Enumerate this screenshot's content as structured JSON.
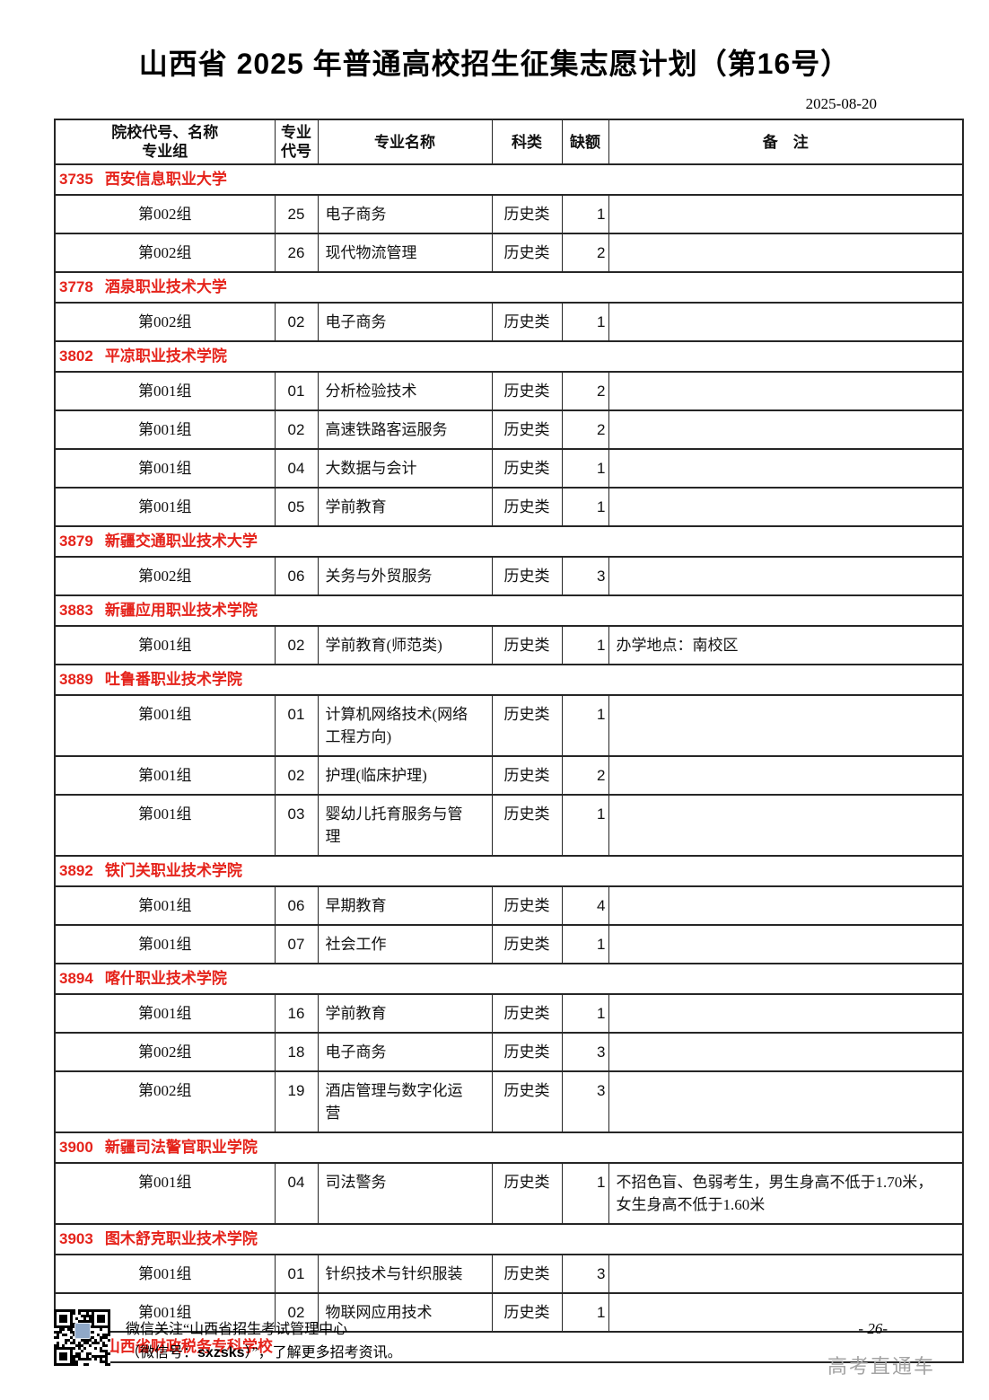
{
  "page": {
    "title": "山西省 2025 年普通高校招生征集志愿计划（第16号）",
    "date": "2025-08-20"
  },
  "table": {
    "headers": {
      "col1_line1": "院校代号、名称",
      "col1_line2": "专业组",
      "col2_line1": "专业",
      "col2_line2": "代号",
      "col3": "专业名称",
      "col4": "科类",
      "col5": "缺额",
      "col6": "备　注"
    },
    "sections": [
      {
        "code": "3735",
        "name": "西安信息职业大学",
        "rows": [
          {
            "group": "第002组",
            "major_code": "25",
            "major_name": "电子商务",
            "category": "历史类",
            "vacancy": "1",
            "remark": ""
          },
          {
            "group": "第002组",
            "major_code": "26",
            "major_name": "现代物流管理",
            "category": "历史类",
            "vacancy": "2",
            "remark": ""
          }
        ]
      },
      {
        "code": "3778",
        "name": "酒泉职业技术大学",
        "rows": [
          {
            "group": "第002组",
            "major_code": "02",
            "major_name": "电子商务",
            "category": "历史类",
            "vacancy": "1",
            "remark": ""
          }
        ]
      },
      {
        "code": "3802",
        "name": "平凉职业技术学院",
        "rows": [
          {
            "group": "第001组",
            "major_code": "01",
            "major_name": "分析检验技术",
            "category": "历史类",
            "vacancy": "2",
            "remark": ""
          },
          {
            "group": "第001组",
            "major_code": "02",
            "major_name": "高速铁路客运服务",
            "category": "历史类",
            "vacancy": "2",
            "remark": ""
          },
          {
            "group": "第001组",
            "major_code": "04",
            "major_name": "大数据与会计",
            "category": "历史类",
            "vacancy": "1",
            "remark": ""
          },
          {
            "group": "第001组",
            "major_code": "05",
            "major_name": "学前教育",
            "category": "历史类",
            "vacancy": "1",
            "remark": ""
          }
        ]
      },
      {
        "code": "3879",
        "name": "新疆交通职业技术大学",
        "rows": [
          {
            "group": "第002组",
            "major_code": "06",
            "major_name": "关务与外贸服务",
            "category": "历史类",
            "vacancy": "3",
            "remark": ""
          }
        ]
      },
      {
        "code": "3883",
        "name": "新疆应用职业技术学院",
        "rows": [
          {
            "group": "第001组",
            "major_code": "02",
            "major_name": "学前教育(师范类)",
            "category": "历史类",
            "vacancy": "1",
            "remark": "办学地点：南校区"
          }
        ]
      },
      {
        "code": "3889",
        "name": "吐鲁番职业技术学院",
        "rows": [
          {
            "group": "第001组",
            "major_code": "01",
            "major_name": "计算机网络技术(网络工程方向)",
            "category": "历史类",
            "vacancy": "1",
            "remark": ""
          },
          {
            "group": "第001组",
            "major_code": "02",
            "major_name": "护理(临床护理)",
            "category": "历史类",
            "vacancy": "2",
            "remark": ""
          },
          {
            "group": "第001组",
            "major_code": "03",
            "major_name": "婴幼儿托育服务与管理",
            "category": "历史类",
            "vacancy": "1",
            "remark": ""
          }
        ]
      },
      {
        "code": "3892",
        "name": "铁门关职业技术学院",
        "rows": [
          {
            "group": "第001组",
            "major_code": "06",
            "major_name": "早期教育",
            "category": "历史类",
            "vacancy": "4",
            "remark": ""
          },
          {
            "group": "第001组",
            "major_code": "07",
            "major_name": "社会工作",
            "category": "历史类",
            "vacancy": "1",
            "remark": ""
          }
        ]
      },
      {
        "code": "3894",
        "name": "喀什职业技术学院",
        "rows": [
          {
            "group": "第001组",
            "major_code": "16",
            "major_name": "学前教育",
            "category": "历史类",
            "vacancy": "1",
            "remark": ""
          },
          {
            "group": "第002组",
            "major_code": "18",
            "major_name": "电子商务",
            "category": "历史类",
            "vacancy": "3",
            "remark": ""
          },
          {
            "group": "第002组",
            "major_code": "19",
            "major_name": "酒店管理与数字化运营",
            "category": "历史类",
            "vacancy": "3",
            "remark": ""
          }
        ]
      },
      {
        "code": "3900",
        "name": "新疆司法警官职业学院",
        "rows": [
          {
            "group": "第001组",
            "major_code": "04",
            "major_name": "司法警务",
            "category": "历史类",
            "vacancy": "1",
            "remark": "不招色盲、色弱考生，男生身高不低于1.70米，女生身高不低于1.60米"
          }
        ]
      },
      {
        "code": "3903",
        "name": "图木舒克职业技术学院",
        "rows": [
          {
            "group": "第001组",
            "major_code": "01",
            "major_name": "针织技术与针织服装",
            "category": "历史类",
            "vacancy": "3",
            "remark": ""
          },
          {
            "group": "第001组",
            "major_code": "02",
            "major_name": "物联网应用技术",
            "category": "历史类",
            "vacancy": "1",
            "remark": ""
          }
        ]
      },
      {
        "code": "6019",
        "name": "山西省财政税务专科学校",
        "rows": []
      }
    ]
  },
  "footer": {
    "qr_icon": "qr-code",
    "line1": "微信关注“山西省招生考试管理中心",
    "line2_pre": "（微信号：",
    "line2_code": "sxzsks",
    "line2_post": "）”，了解更多招考资讯。",
    "page_number": "- 26-",
    "watermark": "高考直通车"
  },
  "colors": {
    "section_red": "#e5231b",
    "border_dark": "#262626",
    "watermark_gray": "#a3a3a3"
  }
}
